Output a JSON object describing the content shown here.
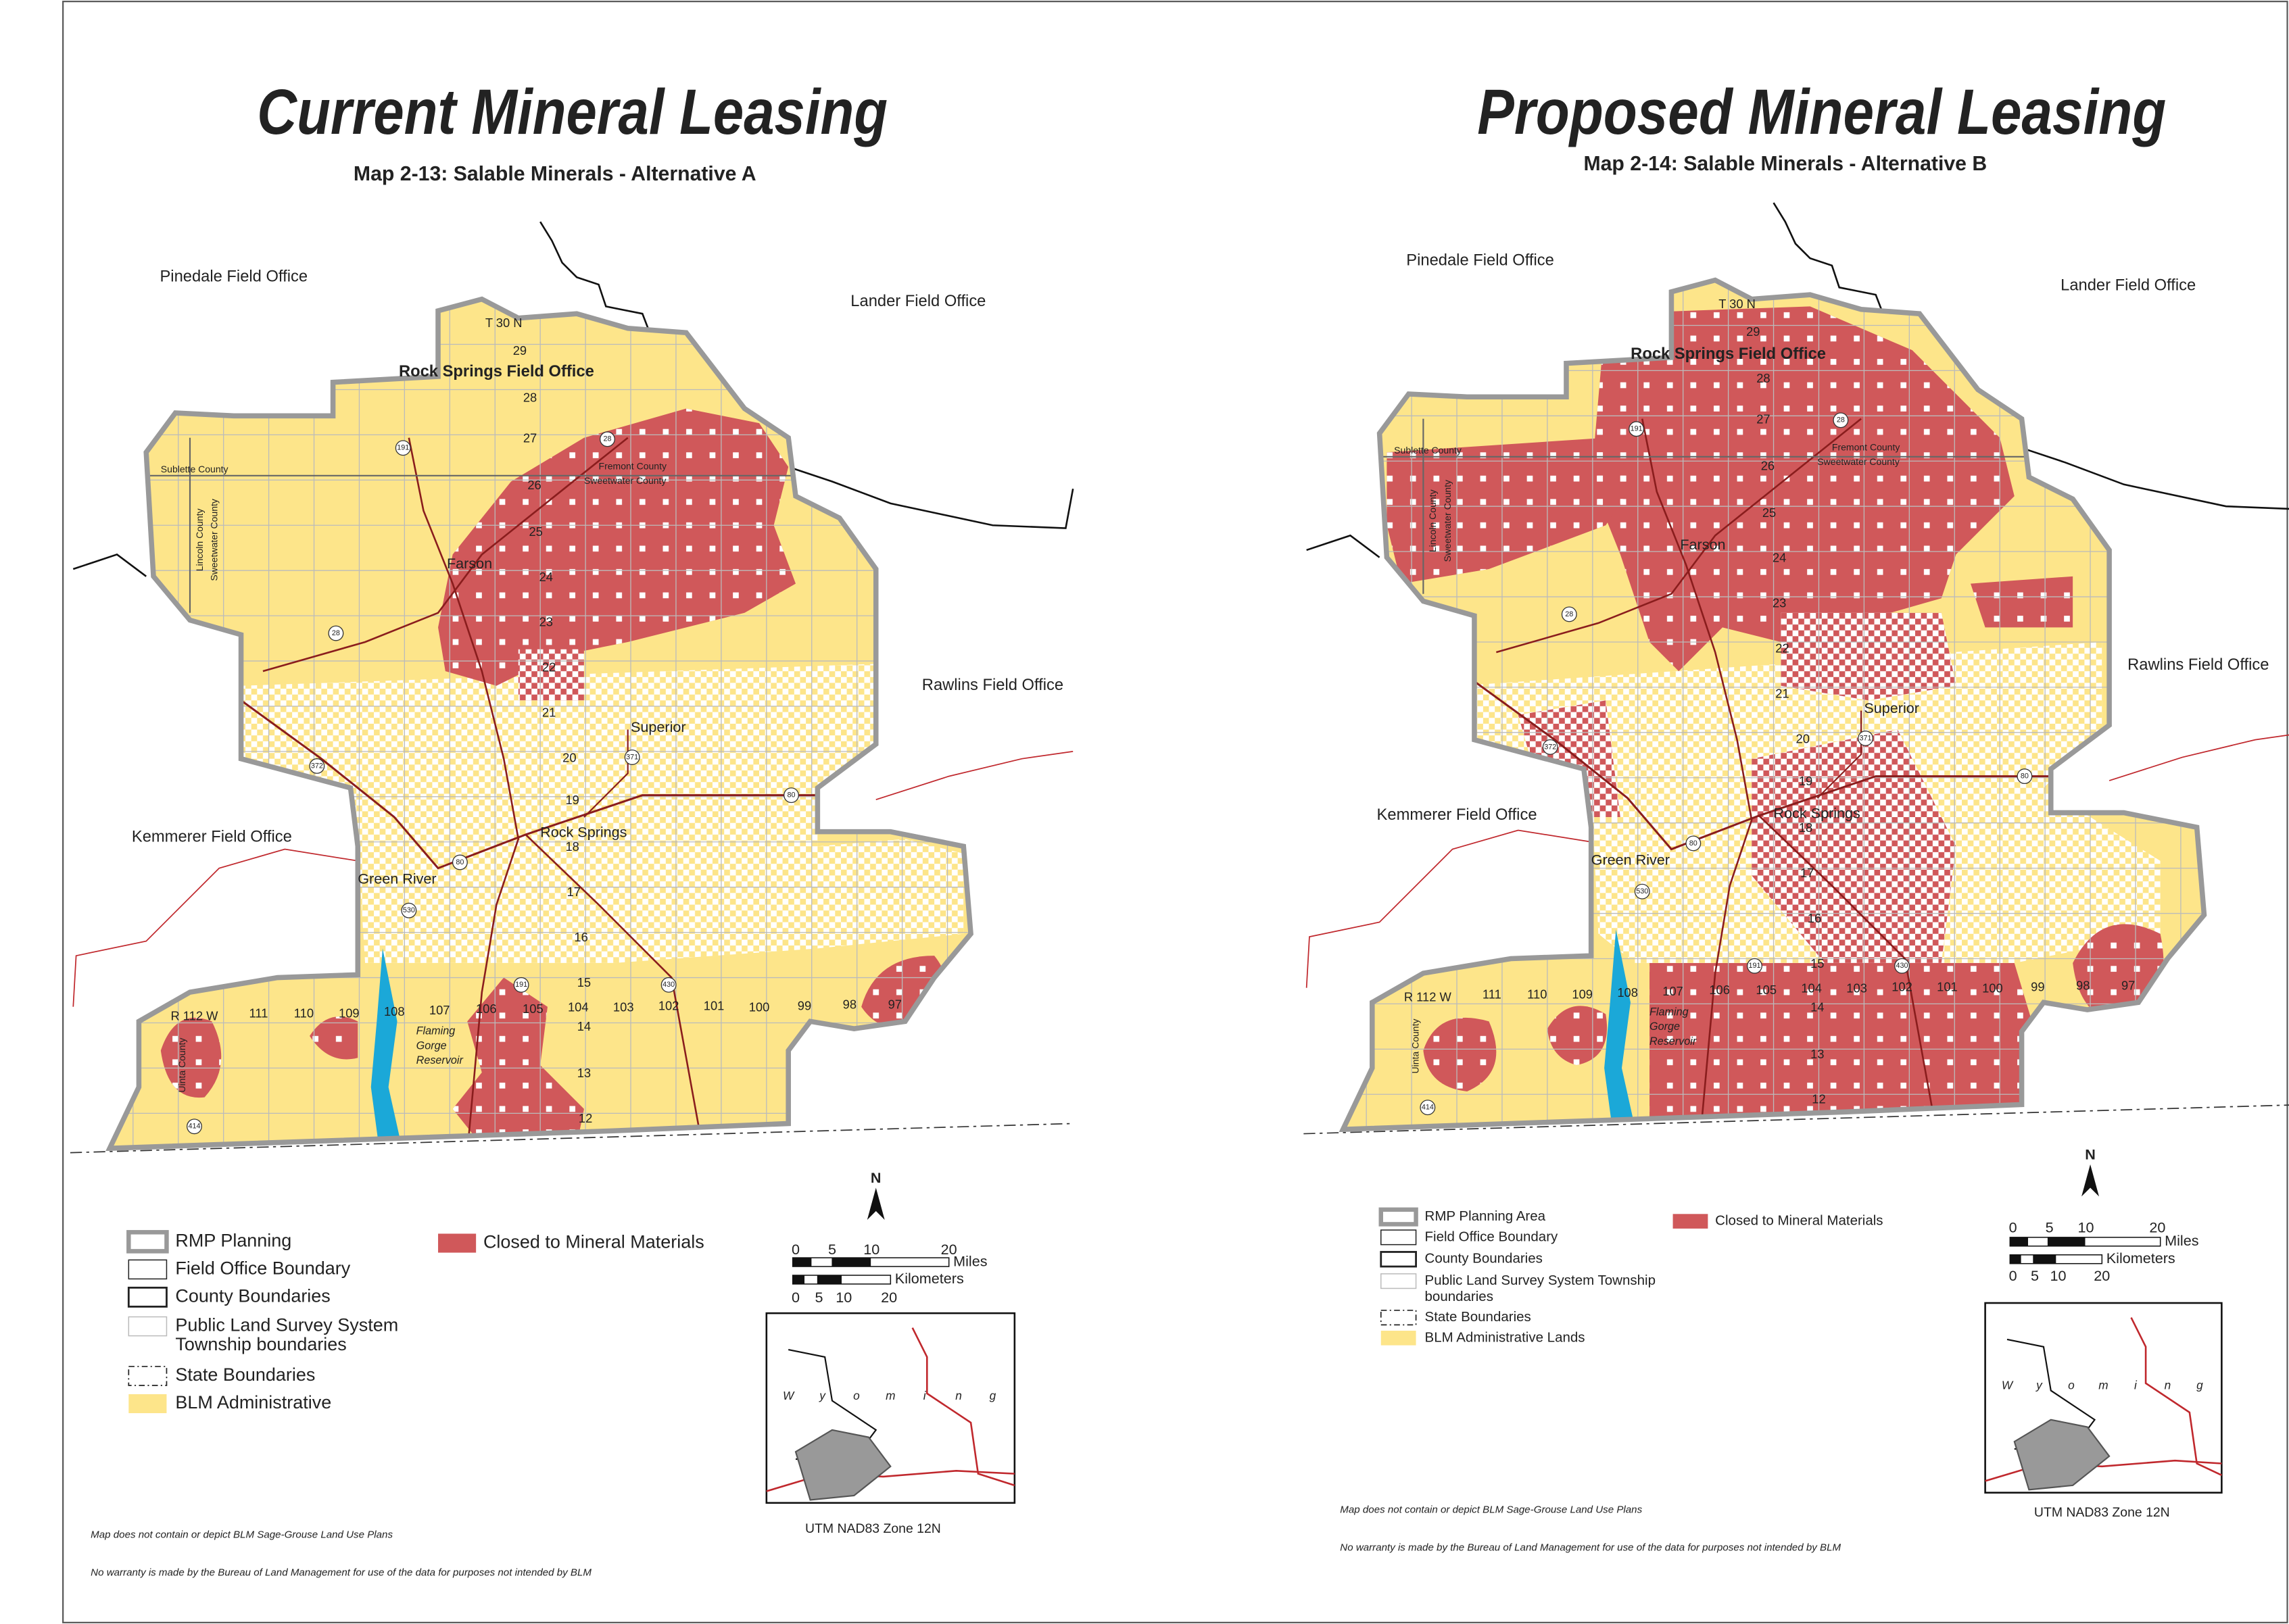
{
  "maps": [
    {
      "title": "Current Mineral Leasing",
      "subtitle": "Map 2-13: Salable Minerals - Alternative A",
      "field_offices": [
        "Pinedale Field Office",
        "Lander Field Office",
        "Rawlins Field Office",
        "Kemmerer Field Office",
        "Rock Springs Field Office"
      ],
      "counties": [
        "Sublette County",
        "Fremont County",
        "Sweetwater County",
        "Lincoln County",
        "Sweetwater County",
        "Uinta County"
      ],
      "places": [
        "Farson",
        "Superior",
        "Rock Springs",
        "Green River"
      ],
      "water": [
        "Flaming",
        "Gorge",
        "Reservoir"
      ],
      "highways": [
        "191",
        "28",
        "28",
        "372",
        "371",
        "80",
        "80",
        "530",
        "191",
        "430",
        "414"
      ],
      "townships": [
        "T 30 N",
        "29",
        "28",
        "27",
        "26",
        "25",
        "24",
        "23",
        "22",
        "21",
        "20",
        "19",
        "18",
        "17",
        "16",
        "15",
        "14",
        "13",
        "12"
      ],
      "ranges": [
        "R 112 W",
        "111",
        "110",
        "109",
        "108",
        "107",
        "106",
        "105",
        "104",
        "103",
        "102",
        "101",
        "100",
        "99",
        "98",
        "97"
      ],
      "legend": [
        [
          "RMP Planning"
        ],
        [
          "Field Office Boundary"
        ],
        [
          "County Boundaries"
        ],
        [
          "Public Land Survey System",
          "Township boundaries"
        ],
        [
          "State Boundaries"
        ],
        [
          "BLM Administrative"
        ],
        [
          "Closed to Mineral Materials"
        ]
      ],
      "north": "N",
      "miles_label": "Miles",
      "miles_ticks": [
        0,
        5,
        10,
        20
      ],
      "km_label": "Kilometers",
      "km_ticks": [
        0,
        5,
        10,
        20
      ],
      "inset_letters": [
        "W",
        "y",
        "o",
        "m",
        "i",
        "n",
        "g"
      ],
      "projection": "UTM NAD83 Zone 12N",
      "notes": [
        "Map does not contain or depict BLM Sage-Grouse Land Use Plans",
        "No warranty is made by the Bureau of Land Management for use of the data for purposes not intended by BLM"
      ]
    },
    {
      "title": "Proposed Mineral Leasing",
      "subtitle": "Map 2-14: Salable Minerals - Alternative B",
      "field_offices": [
        "Pinedale Field Office",
        "Lander Field Office",
        "Rawlins Field Office",
        "Kemmerer Field Office",
        "Rock Springs Field Office"
      ],
      "counties": [
        "Sublette County",
        "Fremont County",
        "Sweetwater County",
        "Lincoln County",
        "Sweetwater County",
        "Uinta County"
      ],
      "places": [
        "Farson",
        "Superior",
        "Rock Springs",
        "Green River"
      ],
      "water": [
        "Flaming",
        "Gorge",
        "Reservoir"
      ],
      "highways": [
        "191",
        "28",
        "28",
        "372",
        "371",
        "80",
        "80",
        "530",
        "191",
        "430",
        "414"
      ],
      "townships": [
        "T 30 N",
        "29",
        "28",
        "27",
        "26",
        "25",
        "24",
        "23",
        "22",
        "21",
        "20",
        "19",
        "18",
        "17",
        "16",
        "15",
        "14",
        "13",
        "12"
      ],
      "ranges": [
        "R 112 W",
        "111",
        "110",
        "109",
        "108",
        "107",
        "106",
        "105",
        "104",
        "103",
        "102",
        "101",
        "100",
        "99",
        "98",
        "97"
      ],
      "legend": [
        [
          "RMP Planning Area"
        ],
        [
          "Field Office Boundary"
        ],
        [
          "County Boundaries"
        ],
        [
          "Public Land Survey System Township",
          "boundaries"
        ],
        [
          "State Boundaries"
        ],
        [
          "BLM Administrative Lands"
        ],
        [
          "Closed to Mineral Materials"
        ]
      ],
      "north": "N",
      "miles_label": "Miles",
      "miles_ticks": [
        0,
        5,
        10,
        20
      ],
      "km_label": "Kilometers",
      "km_ticks": [
        0,
        5,
        10,
        20
      ],
      "inset_letters": [
        "W",
        "y",
        "o",
        "m",
        "i",
        "n",
        "g"
      ],
      "projection": "UTM NAD83 Zone 12N",
      "notes": [
        "Map does not contain or depict BLM Sage-Grouse Land Use Plans",
        "No warranty is made by the Bureau of Land Management for use of the data for purposes not intended by BLM"
      ]
    }
  ]
}
